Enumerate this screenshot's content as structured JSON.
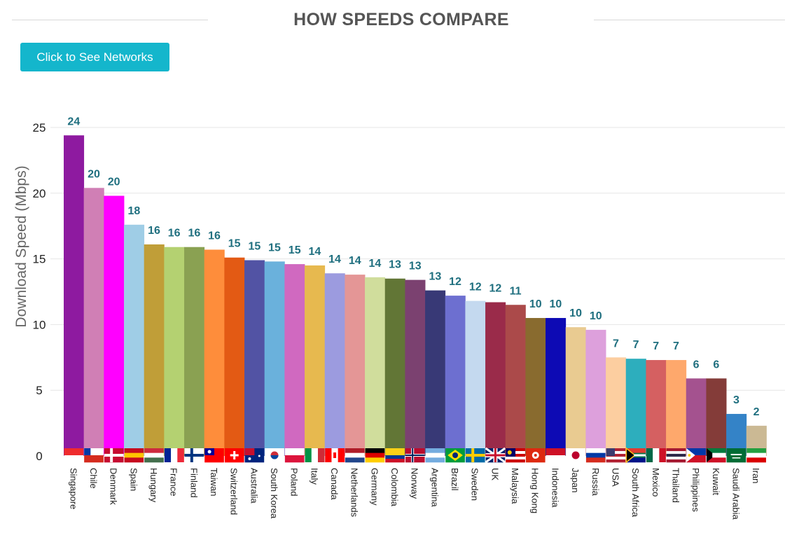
{
  "header": {
    "title": "HOW SPEEDS COMPARE"
  },
  "controls": {
    "networks_button": "Click to See Networks"
  },
  "chart_data": {
    "type": "bar",
    "title": "HOW SPEEDS COMPARE",
    "xlabel": "",
    "ylabel": "Download Speed (Mbps)",
    "ylim": [
      0,
      25
    ],
    "yticks": [
      0,
      5,
      10,
      15,
      20,
      25
    ],
    "grid": true,
    "categories": [
      "Singapore",
      "Chile",
      "Denmark",
      "Spain",
      "Hungary",
      "France",
      "Finland",
      "Taiwan",
      "Switzerland",
      "Australia",
      "South Korea",
      "Poland",
      "Italy",
      "Canada",
      "Netherlands",
      "Germany",
      "Colombia",
      "Norway",
      "Argentina",
      "Brazil",
      "Sweden",
      "UK",
      "Malaysia",
      "Hong Kong",
      "Indonesia",
      "Japan",
      "Russia",
      "USA",
      "South Africa",
      "Mexico",
      "Thailand",
      "Philippines",
      "Kuwait",
      "Saudi Arabia",
      "Iran"
    ],
    "values": [
      24.4,
      20.4,
      19.8,
      17.6,
      16.1,
      15.9,
      15.9,
      15.7,
      15.1,
      14.9,
      14.8,
      14.6,
      14.5,
      13.9,
      13.8,
      13.6,
      13.5,
      13.4,
      12.6,
      12.2,
      11.8,
      11.7,
      11.5,
      10.5,
      10.5,
      9.8,
      9.6,
      7.5,
      7.4,
      7.3,
      7.3,
      5.9,
      5.9,
      3.2,
      2.3
    ],
    "labels": [
      "24",
      "20",
      "20",
      "18",
      "16",
      "16",
      "16",
      "16",
      "15",
      "15",
      "15",
      "15",
      "14",
      "14",
      "14",
      "14",
      "13",
      "13",
      "13",
      "12",
      "12",
      "12",
      "11",
      "10",
      "10",
      "10",
      "10",
      "7",
      "7",
      "7",
      "7",
      "6",
      "6",
      "3",
      "2"
    ],
    "colors": [
      "#8e1aa0",
      "#d07fb5",
      "#ff00ff",
      "#9fcde6",
      "#c09e38",
      "#b4d171",
      "#8aa152",
      "#fe8d3b",
      "#e35a14",
      "#5253a4",
      "#6ab1dc",
      "#d069c0",
      "#e7b94f",
      "#9c9bdf",
      "#e49696",
      "#d0dd9c",
      "#627636",
      "#7b4170",
      "#383976",
      "#6d6fd0",
      "#c4d9ef",
      "#9a2b4a",
      "#ab4a4a",
      "#896b2f",
      "#0d0ab4",
      "#e9cb91",
      "#dda0dc",
      "#fccea0",
      "#2daebd",
      "#d56061",
      "#fea86c",
      "#a4528f",
      "#843c39",
      "#3483c7",
      "#cbb994"
    ],
    "flags": [
      {
        "c": [
          "#ef2b2d",
          "#ffffff"
        ],
        "d": "h",
        "mark": ""
      },
      {
        "c": [
          "#ffffff",
          "#d52b1e"
        ],
        "d": "h",
        "mark": "canton-blue"
      },
      {
        "c": [
          "#c60c30"
        ],
        "d": "h",
        "mark": "cross-white"
      },
      {
        "c": [
          "#c60b1e",
          "#ffc400",
          "#c60b1e"
        ],
        "d": "h",
        "mark": ""
      },
      {
        "c": [
          "#cd2a3e",
          "#ffffff",
          "#436f4d"
        ],
        "d": "h",
        "mark": ""
      },
      {
        "c": [
          "#002395",
          "#ffffff",
          "#ed2939"
        ],
        "d": "v",
        "mark": ""
      },
      {
        "c": [
          "#ffffff"
        ],
        "d": "h",
        "mark": "cross-blue"
      },
      {
        "c": [
          "#fe0000"
        ],
        "d": "h",
        "mark": "canton-navy"
      },
      {
        "c": [
          "#ff0000"
        ],
        "d": "h",
        "mark": "plus-white"
      },
      {
        "c": [
          "#00247d"
        ],
        "d": "h",
        "mark": "stars"
      },
      {
        "c": [
          "#ffffff"
        ],
        "d": "h",
        "mark": "disc"
      },
      {
        "c": [
          "#ffffff",
          "#dc143c"
        ],
        "d": "h",
        "mark": ""
      },
      {
        "c": [
          "#009246",
          "#ffffff",
          "#ce2b37"
        ],
        "d": "v",
        "mark": ""
      },
      {
        "c": [
          "#ff0000",
          "#ffffff",
          "#ff0000"
        ],
        "d": "v",
        "mark": "leaf"
      },
      {
        "c": [
          "#ae1c28",
          "#ffffff",
          "#21468b"
        ],
        "d": "h",
        "mark": ""
      },
      {
        "c": [
          "#000000",
          "#dd0000",
          "#ffce00"
        ],
        "d": "h",
        "mark": ""
      },
      {
        "c": [
          "#fcd116",
          "#fcd116",
          "#003893",
          "#ce1126"
        ],
        "d": "h",
        "mark": ""
      },
      {
        "c": [
          "#ba0c2f"
        ],
        "d": "h",
        "mark": "cross-nordic"
      },
      {
        "c": [
          "#74acdf",
          "#ffffff",
          "#74acdf"
        ],
        "d": "h",
        "mark": ""
      },
      {
        "c": [
          "#009c3b"
        ],
        "d": "h",
        "mark": "diamond"
      },
      {
        "c": [
          "#006aa7"
        ],
        "d": "h",
        "mark": "cross-yellow"
      },
      {
        "c": [
          "#012169"
        ],
        "d": "h",
        "mark": "union"
      },
      {
        "c": [
          "#cc0001",
          "#ffffff",
          "#cc0001",
          "#ffffff",
          "#cc0001"
        ],
        "d": "h",
        "mark": "canton-my"
      },
      {
        "c": [
          "#de2910"
        ],
        "d": "h",
        "mark": "bauhinia"
      },
      {
        "c": [
          "#ce1126",
          "#ffffff"
        ],
        "d": "h",
        "mark": ""
      },
      {
        "c": [
          "#ffffff"
        ],
        "d": "h",
        "mark": "sun"
      },
      {
        "c": [
          "#ffffff",
          "#0039a6",
          "#d52b1e"
        ],
        "d": "h",
        "mark": ""
      },
      {
        "c": [
          "#b22234",
          "#ffffff",
          "#b22234",
          "#ffffff",
          "#b22234"
        ],
        "d": "h",
        "mark": "canton-us"
      },
      {
        "c": [
          "#e03c31",
          "#007749",
          "#001489"
        ],
        "d": "h",
        "mark": "sa"
      },
      {
        "c": [
          "#006847",
          "#ffffff",
          "#ce1126"
        ],
        "d": "v",
        "mark": ""
      },
      {
        "c": [
          "#a51931",
          "#f4f5f8",
          "#2d2a4a",
          "#f4f5f8",
          "#a51931"
        ],
        "d": "h",
        "mark": ""
      },
      {
        "c": [
          "#0038a8",
          "#ce1126"
        ],
        "d": "h",
        "mark": "triangle-white"
      },
      {
        "c": [
          "#007a3d",
          "#ffffff",
          "#ce1126"
        ],
        "d": "h",
        "mark": "trap-black"
      },
      {
        "c": [
          "#006c35"
        ],
        "d": "h",
        "mark": "script"
      },
      {
        "c": [
          "#239f40",
          "#ffffff",
          "#da0000"
        ],
        "d": "h",
        "mark": ""
      }
    ]
  }
}
